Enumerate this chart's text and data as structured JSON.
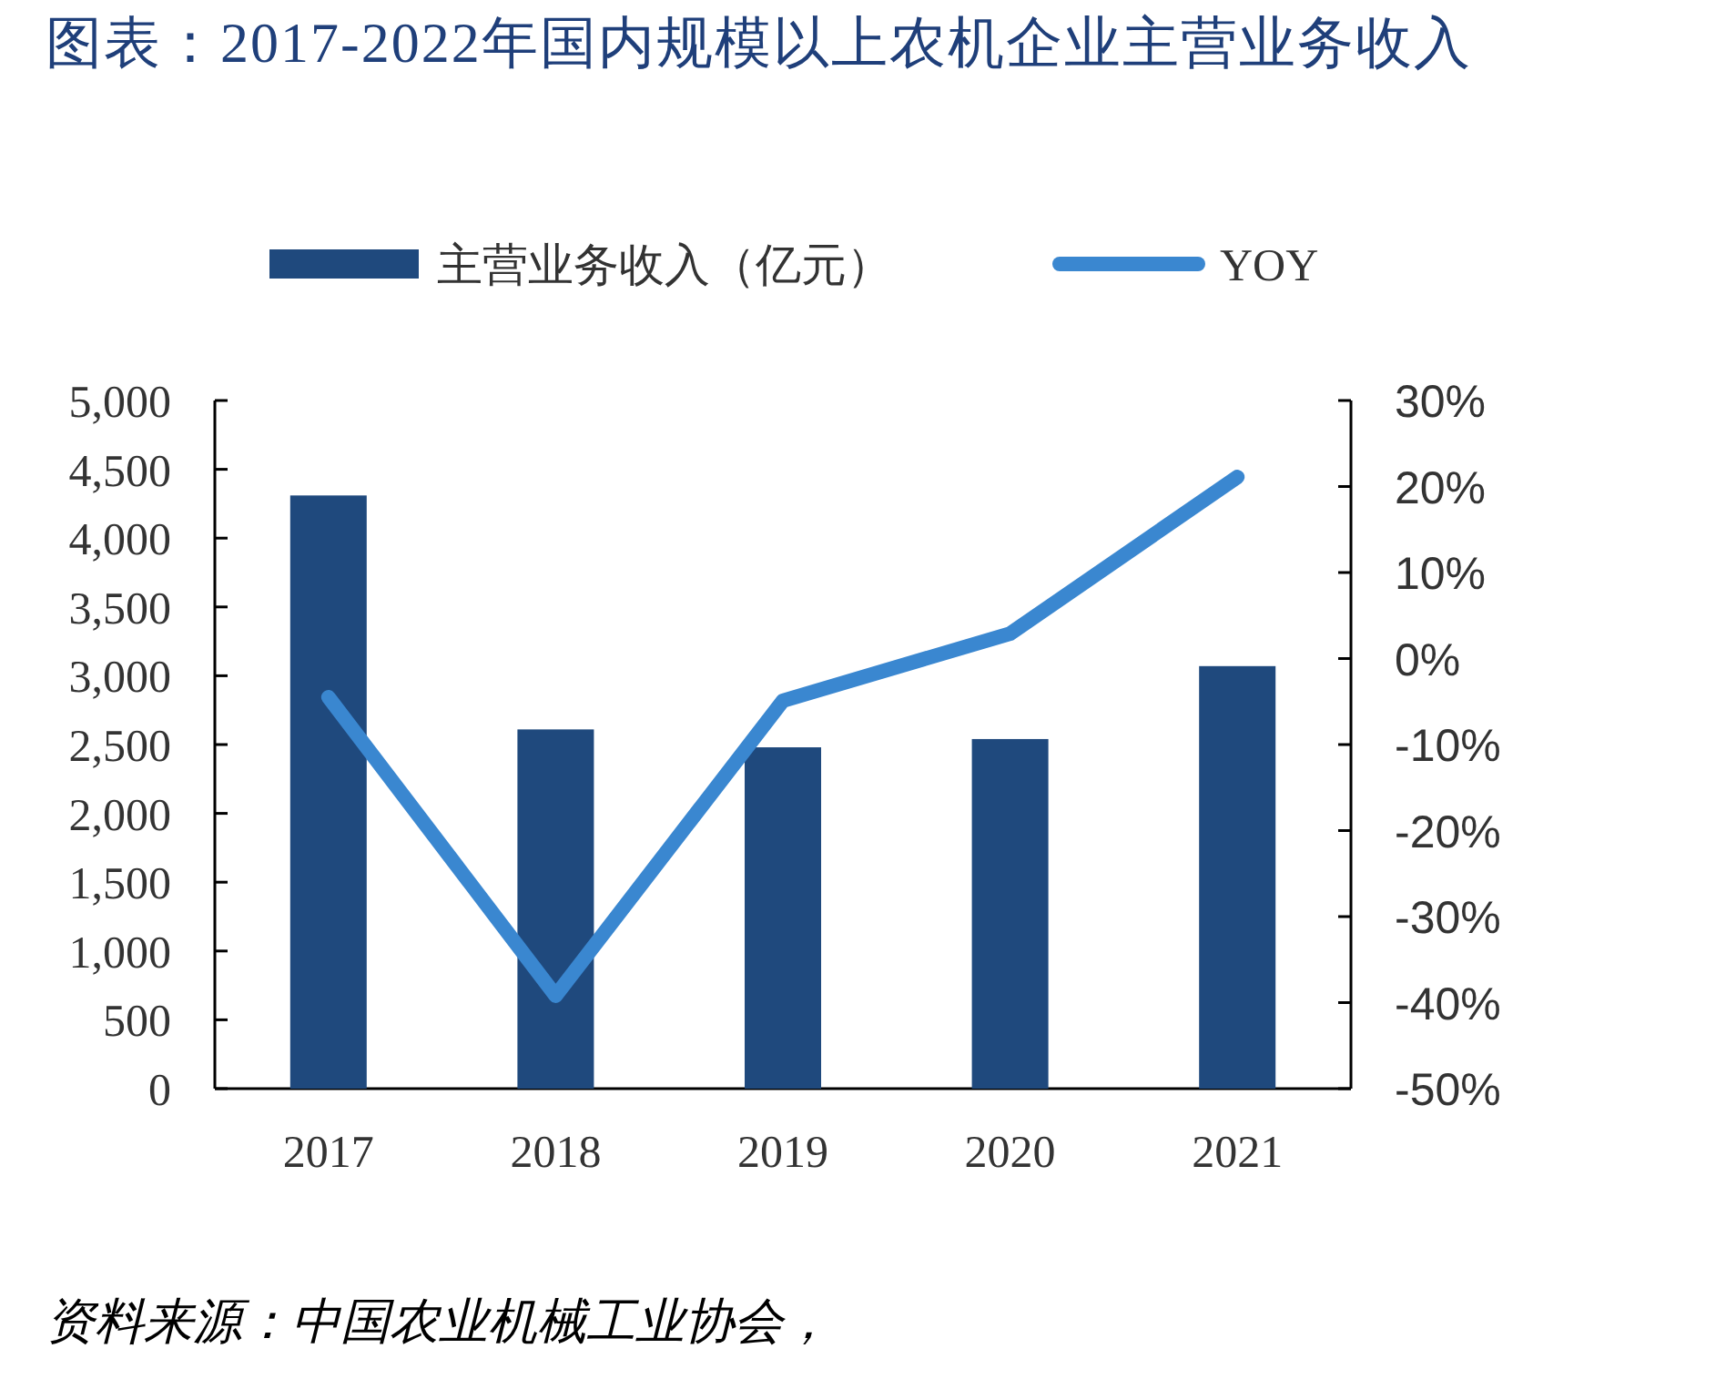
{
  "chart_data": {
    "type": "bar",
    "title": "图表：2017-2022年国内规模以上农机企业主营业务收入",
    "categories": [
      "2017",
      "2018",
      "2019",
      "2020",
      "2021"
    ],
    "series": [
      {
        "name": "主营业务收入（亿元）",
        "color": "#1f497d",
        "values": [
          4310,
          2610,
          2480,
          2540,
          3070
        ]
      },
      {
        "name": "YOY",
        "type": "line",
        "axis": "y2",
        "color": "#3a87d0",
        "values": [
          -4.5,
          -39.2,
          -4.9,
          2.9,
          21.1
        ]
      }
    ],
    "ylim": [
      0,
      5000
    ],
    "yticks": [
      0,
      500,
      {
        "value": 1000,
        "label": "1,000"
      },
      {
        "value": 1500,
        "label": "1,500"
      },
      {
        "value": 2000,
        "label": "2,000"
      },
      {
        "value": 2500,
        "label": "2,500"
      },
      {
        "value": 3000,
        "label": "3,000"
      },
      {
        "value": 3500,
        "label": "3,500"
      },
      {
        "value": 4000,
        "label": "4,000"
      },
      {
        "value": 4500,
        "label": "4,500"
      },
      {
        "value": 5000,
        "label": "5,000"
      }
    ],
    "y2lim": [
      -50,
      30
    ],
    "y2ticks": [
      {
        "value": -50,
        "label": "-50%"
      },
      {
        "value": -40,
        "label": "-40%"
      },
      {
        "value": -30,
        "label": "-30%"
      },
      {
        "value": -20,
        "label": "-20%"
      },
      {
        "value": -10,
        "label": "-10%"
      },
      {
        "value": 0,
        "label": "0%"
      },
      {
        "value": 10,
        "label": "10%"
      },
      {
        "value": 20,
        "label": "20%"
      },
      {
        "value": 30,
        "label": "30%"
      }
    ],
    "legend": "top",
    "marker": "none",
    "grid": false,
    "annotations": [
      "资料来源：中国农业机械工业协会，"
    ]
  }
}
